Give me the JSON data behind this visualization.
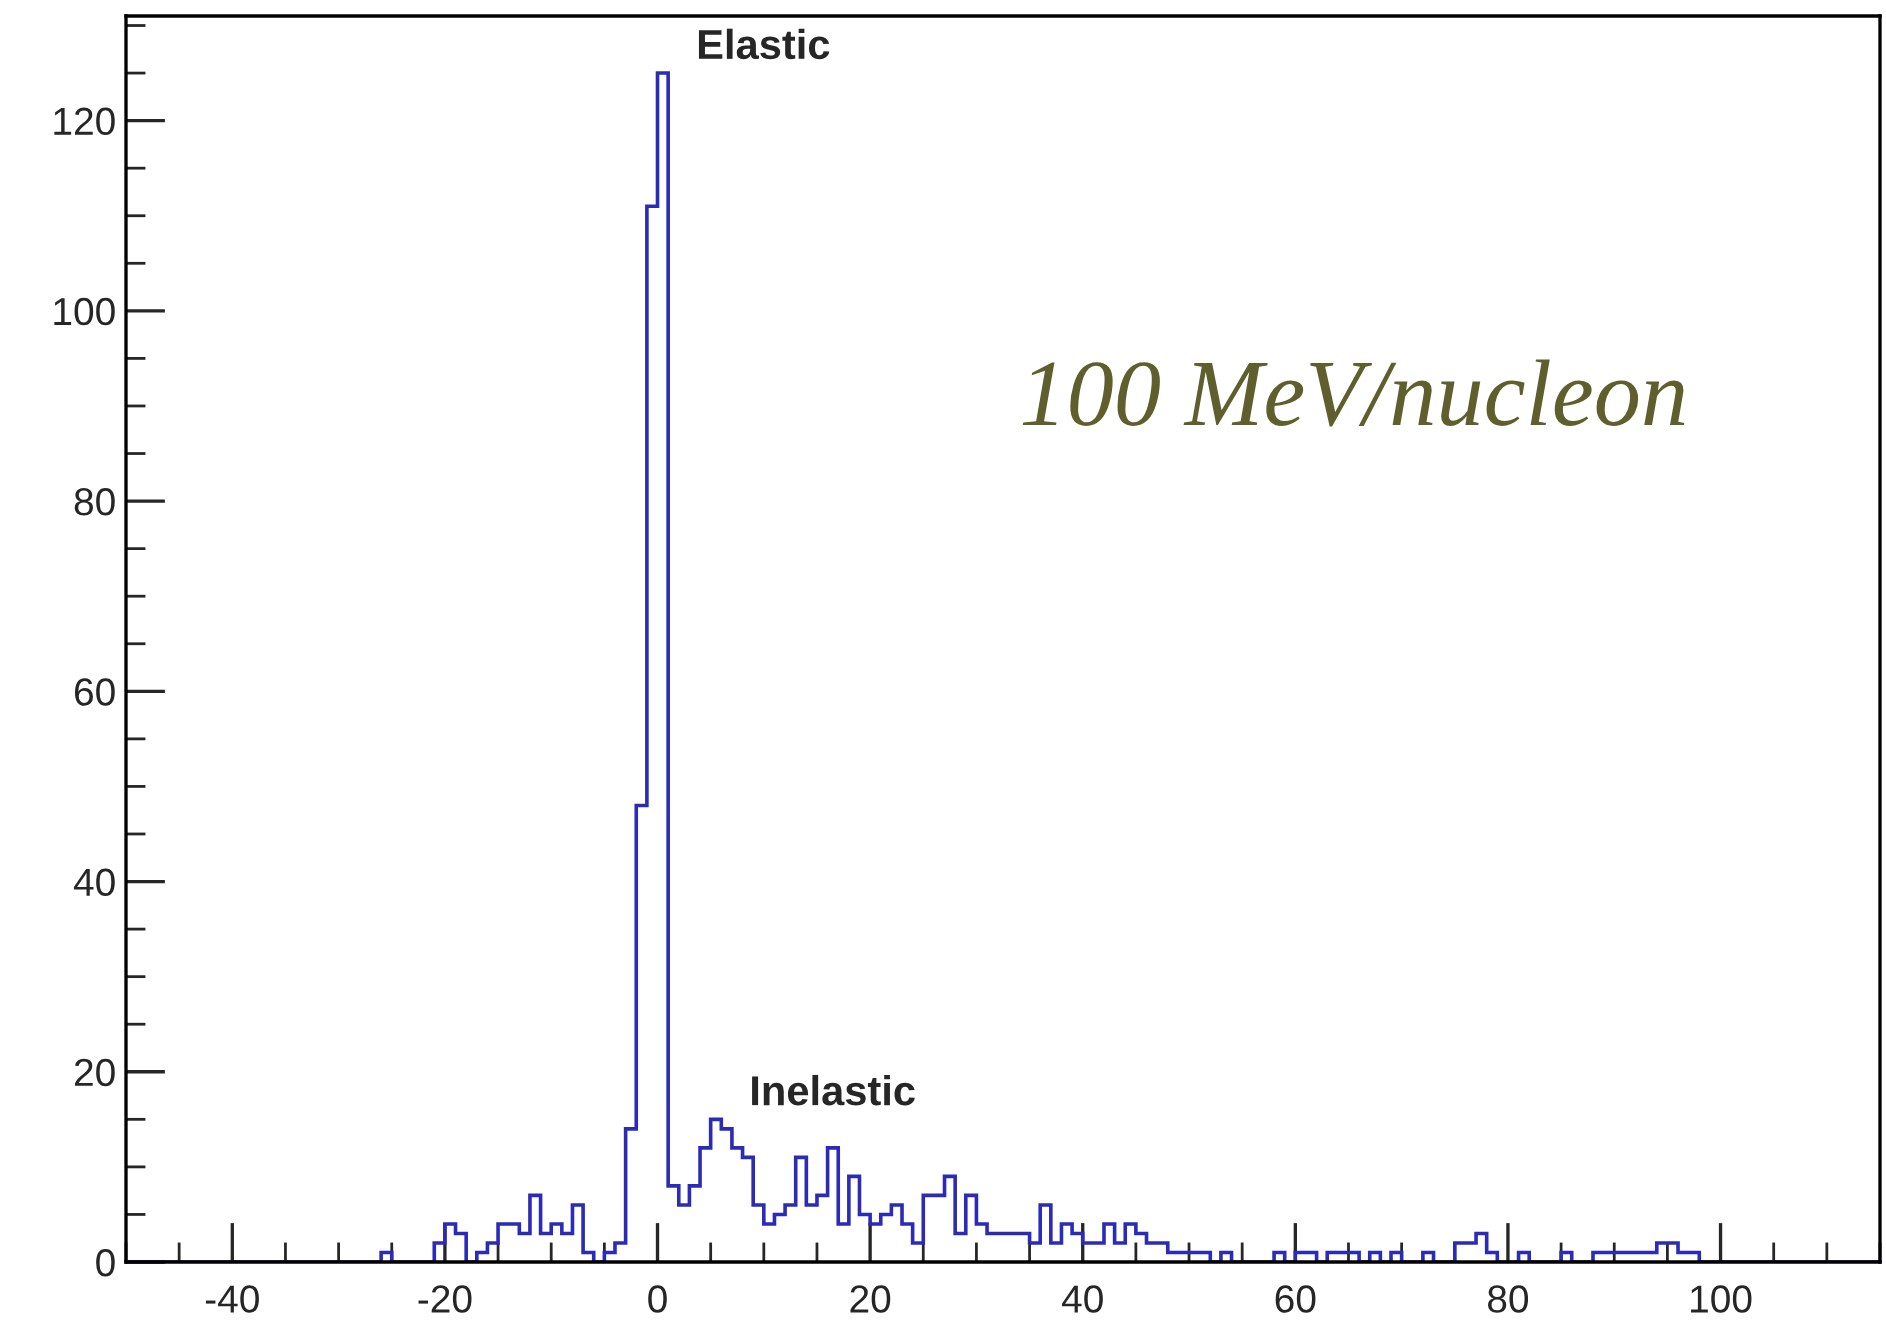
{
  "chart_data": {
    "type": "histogram",
    "bins": [
      -50,
      -49,
      -48,
      -47,
      -46,
      -45,
      -44,
      -43,
      -42,
      -41,
      -40,
      -39,
      -38,
      -37,
      -36,
      -35,
      -34,
      -33,
      -32,
      -31,
      -30,
      -29,
      -28,
      -27,
      -26,
      -25,
      -24,
      -23,
      -22,
      -21,
      -20,
      -19,
      -18,
      -17,
      -16,
      -15,
      -14,
      -13,
      -12,
      -11,
      -10,
      -9,
      -8,
      -7,
      -6,
      -5,
      -4,
      -3,
      -2,
      -1,
      0,
      1,
      2,
      3,
      4,
      5,
      6,
      7,
      8,
      9,
      10,
      11,
      12,
      13,
      14,
      15,
      16,
      17,
      18,
      19,
      20,
      21,
      22,
      23,
      24,
      25,
      26,
      27,
      28,
      29,
      30,
      31,
      32,
      33,
      34,
      35,
      36,
      37,
      38,
      39,
      40,
      41,
      42,
      43,
      44,
      45,
      46,
      47,
      48,
      49,
      50,
      51,
      52,
      53,
      54,
      55,
      56,
      57,
      58,
      59,
      60,
      61,
      62,
      63,
      64,
      65,
      66,
      67,
      68,
      69,
      70,
      71,
      72,
      73,
      74,
      75,
      76,
      77,
      78,
      79,
      80,
      81,
      82,
      83,
      84,
      85,
      86,
      87,
      88,
      89,
      90,
      91,
      92,
      93,
      94,
      95,
      96,
      97,
      98,
      99,
      100,
      101,
      102,
      103,
      104,
      105,
      106,
      107,
      108,
      109,
      110,
      111,
      112,
      113,
      114,
      115
    ],
    "values": [
      0,
      0,
      0,
      0,
      0,
      0,
      0,
      0,
      0,
      0,
      0,
      0,
      0,
      0,
      0,
      0,
      0,
      0,
      0,
      0,
      0,
      0,
      0,
      0,
      1,
      0,
      0,
      0,
      0,
      2,
      4,
      3,
      0,
      1,
      2,
      4,
      4,
      3,
      7,
      3,
      4,
      3,
      6,
      1,
      0,
      1,
      2,
      14,
      48,
      111,
      125,
      8,
      6,
      8,
      12,
      15,
      14,
      12,
      11,
      6,
      4,
      5,
      6,
      11,
      6,
      7,
      12,
      4,
      9,
      5,
      4,
      5,
      6,
      4,
      2,
      7,
      7,
      9,
      3,
      7,
      4,
      3,
      3,
      3,
      3,
      2,
      6,
      2,
      4,
      3,
      2,
      2,
      4,
      2,
      4,
      3,
      2,
      2,
      1,
      1,
      1,
      1,
      0,
      1,
      0,
      0,
      0,
      0,
      1,
      0,
      1,
      1,
      0,
      1,
      1,
      1,
      0,
      1,
      0,
      1,
      0,
      0,
      1,
      0,
      0,
      2,
      2,
      3,
      1,
      0,
      0,
      1,
      0,
      0,
      0,
      1,
      0,
      0,
      1,
      1,
      1,
      1,
      1,
      1,
      2,
      2,
      1,
      1,
      0,
      0,
      0,
      0,
      0,
      0,
      0,
      0,
      0,
      0,
      0,
      0,
      0,
      0,
      0,
      0,
      0
    ],
    "color": "#2b2bb8",
    "xlim": [
      -50,
      115
    ],
    "xticks": [
      -40,
      -20,
      0,
      20,
      40,
      60,
      80,
      100
    ],
    "ylim": [
      0,
      131
    ],
    "yticks": [
      0,
      20,
      40,
      60,
      80,
      100,
      120
    ],
    "grid": false,
    "annotations": [
      {
        "text": "Elastic",
        "x": 0.5,
        "y": 125
      },
      {
        "text": "Inelastic",
        "x": 5.5,
        "y": 15
      },
      "100 MeV/nucleon"
    ]
  }
}
